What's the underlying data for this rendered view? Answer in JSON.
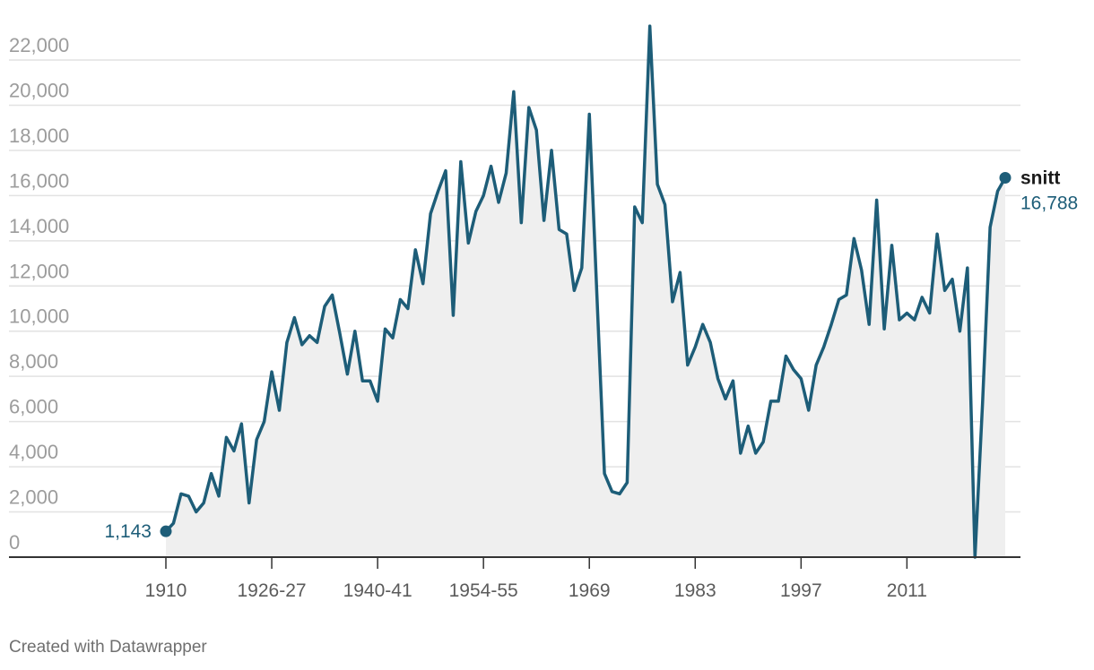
{
  "credit": "Created with Datawrapper",
  "colors": {
    "line": "#1d5d78",
    "area": "#efefef",
    "grid": "#e2e2e2",
    "axis": "#333333"
  },
  "chart_data": {
    "type": "area",
    "ylim": [
      0,
      22000
    ],
    "grid": true,
    "y_ticks": [
      {
        "value": 0,
        "label": "0"
      },
      {
        "value": 2000,
        "label": "2,000"
      },
      {
        "value": 4000,
        "label": "4,000"
      },
      {
        "value": 6000,
        "label": "6,000"
      },
      {
        "value": 8000,
        "label": "8,000"
      },
      {
        "value": 10000,
        "label": "10,000"
      },
      {
        "value": 12000,
        "label": "12,000"
      },
      {
        "value": 14000,
        "label": "14,000"
      },
      {
        "value": 16000,
        "label": "16,000"
      },
      {
        "value": 18000,
        "label": "18,000"
      },
      {
        "value": 20000,
        "label": "20,000"
      },
      {
        "value": 22000,
        "label": "22,000"
      }
    ],
    "x_ticks": [
      {
        "index": 0,
        "label": "1910"
      },
      {
        "index": 14,
        "label": "1926-27"
      },
      {
        "index": 28,
        "label": "1940-41"
      },
      {
        "index": 42,
        "label": "1954-55"
      },
      {
        "index": 56,
        "label": "1969"
      },
      {
        "index": 70,
        "label": "1983"
      },
      {
        "index": 84,
        "label": "1997"
      },
      {
        "index": 98,
        "label": "2011"
      }
    ],
    "annotations": {
      "start": {
        "index": 0,
        "value": 1143,
        "label": "1,143"
      },
      "end": {
        "index": 111,
        "name": "snitt",
        "value": 16788,
        "label": "16,788"
      }
    },
    "series": [
      {
        "values": [
          1143,
          1500,
          2800,
          2700,
          2000,
          2400,
          3700,
          2700,
          5300,
          4700,
          5900,
          2400,
          5200,
          6000,
          8200,
          6500,
          9500,
          10600,
          9400,
          9800,
          9500,
          11100,
          11600,
          9900,
          8100,
          10000,
          7800,
          7800,
          6900,
          10100,
          9700,
          11400,
          11000,
          13600,
          12100,
          15200,
          16200,
          17100,
          10700,
          17500,
          13900,
          15300,
          16000,
          17300,
          15700,
          17000,
          20600,
          14800,
          19900,
          18900,
          14900,
          18000,
          14500,
          14300,
          11800,
          12800,
          19600,
          11600,
          3700,
          2900,
          2800,
          3300,
          15500,
          14800,
          23500,
          16500,
          15600,
          11300,
          12600,
          8500,
          9300,
          10300,
          9500,
          7900,
          7000,
          7800,
          4600,
          5800,
          4600,
          5100,
          6900,
          6900,
          8900,
          8300,
          7900,
          6500,
          8500,
          9300,
          10300,
          11400,
          11600,
          14100,
          12700,
          10300,
          15800,
          10100,
          13800,
          10500,
          10800,
          10500,
          11500,
          10800,
          14300,
          11800,
          12300,
          10000,
          12800,
          0,
          6800,
          14600,
          16200,
          16788
        ]
      }
    ]
  }
}
